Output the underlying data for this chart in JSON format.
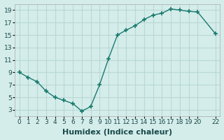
{
  "x": [
    0,
    1,
    2,
    3,
    4,
    5,
    6,
    7,
    8,
    9,
    10,
    11,
    12,
    13,
    14,
    15,
    16,
    17,
    18,
    19,
    20,
    22
  ],
  "y": [
    9,
    8.2,
    7.5,
    6.0,
    5.0,
    4.5,
    4.0,
    2.8,
    3.5,
    7.0,
    11.2,
    15.0,
    15.8,
    16.5,
    17.5,
    18.2,
    18.5,
    19.2,
    19.0,
    18.8,
    18.7,
    15.2
  ],
  "line_color": "#1a7a6e",
  "marker": "+",
  "marker_size": 4,
  "marker_lw": 1.2,
  "bg_color": "#d4edeb",
  "grid_color": "#b8d8d5",
  "xlabel": "Humidex (Indice chaleur)",
  "xlabel_fontsize": 8,
  "tick_fontsize": 6.5,
  "ylim": [
    2,
    20
  ],
  "xlim": [
    -0.5,
    22.5
  ],
  "yticks": [
    3,
    5,
    7,
    9,
    11,
    13,
    15,
    17,
    19
  ],
  "xticks": [
    0,
    1,
    2,
    3,
    4,
    5,
    6,
    7,
    8,
    9,
    10,
    11,
    12,
    13,
    14,
    15,
    16,
    17,
    18,
    19,
    20,
    22
  ]
}
